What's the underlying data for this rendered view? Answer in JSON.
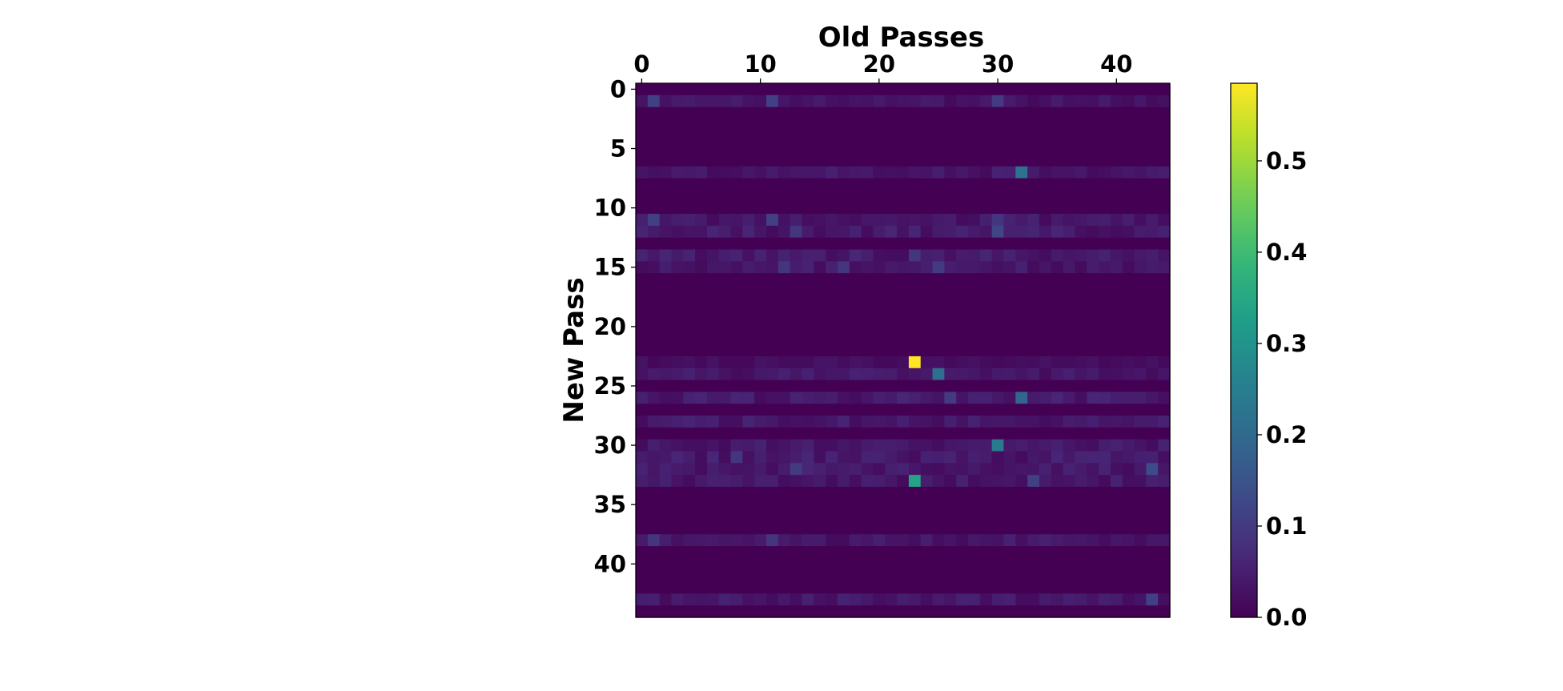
{
  "chart_data": {
    "type": "heatmap",
    "xlabel": "Old Passes",
    "ylabel": "New Pass",
    "x_ticks": [
      0,
      10,
      20,
      30,
      40
    ],
    "y_ticks": [
      0,
      5,
      10,
      15,
      20,
      25,
      30,
      35,
      40
    ],
    "n_cols": 45,
    "n_rows": 45,
    "xlim": [
      -0.5,
      44.5
    ],
    "ylim": [
      44.5,
      -0.5
    ],
    "x_axis_position": "top",
    "colormap": "viridis",
    "colorbar": {
      "vmin": 0.0,
      "vmax": 0.585,
      "ticks": [
        0.0,
        0.1,
        0.2,
        0.3,
        0.4,
        0.5
      ],
      "tick_labels": [
        "0.0",
        "0.1",
        "0.2",
        "0.3",
        "0.4",
        "0.5"
      ]
    },
    "row_baselines": {
      "1": 0.03,
      "7": 0.035,
      "11": 0.035,
      "12": 0.04,
      "14": 0.04,
      "15": 0.035,
      "23": 0.02,
      "24": 0.035,
      "26": 0.04,
      "28": 0.04,
      "30": 0.035,
      "31": 0.04,
      "32": 0.04,
      "33": 0.035,
      "38": 0.035,
      "43": 0.035
    },
    "notable_cells": [
      {
        "row": 23,
        "col": 23,
        "value": 0.585
      },
      {
        "row": 33,
        "col": 23,
        "value": 0.34
      },
      {
        "row": 30,
        "col": 30,
        "value": 0.24
      },
      {
        "row": 24,
        "col": 25,
        "value": 0.21
      },
      {
        "row": 7,
        "col": 32,
        "value": 0.22
      },
      {
        "row": 26,
        "col": 32,
        "value": 0.19
      },
      {
        "row": 1,
        "col": 1,
        "value": 0.11
      },
      {
        "row": 1,
        "col": 11,
        "value": 0.11
      },
      {
        "row": 1,
        "col": 30,
        "value": 0.1
      },
      {
        "row": 11,
        "col": 1,
        "value": 0.11
      },
      {
        "row": 11,
        "col": 11,
        "value": 0.11
      },
      {
        "row": 11,
        "col": 30,
        "value": 0.09
      },
      {
        "row": 12,
        "col": 30,
        "value": 0.12
      },
      {
        "row": 12,
        "col": 13,
        "value": 0.09
      },
      {
        "row": 14,
        "col": 23,
        "value": 0.09
      },
      {
        "row": 15,
        "col": 12,
        "value": 0.09
      },
      {
        "row": 15,
        "col": 17,
        "value": 0.09
      },
      {
        "row": 15,
        "col": 25,
        "value": 0.1
      },
      {
        "row": 26,
        "col": 26,
        "value": 0.1
      },
      {
        "row": 31,
        "col": 8,
        "value": 0.09
      },
      {
        "row": 32,
        "col": 13,
        "value": 0.1
      },
      {
        "row": 32,
        "col": 43,
        "value": 0.13
      },
      {
        "row": 33,
        "col": 33,
        "value": 0.11
      },
      {
        "row": 38,
        "col": 1,
        "value": 0.09
      },
      {
        "row": 38,
        "col": 11,
        "value": 0.09
      },
      {
        "row": 43,
        "col": 43,
        "value": 0.11
      }
    ]
  }
}
